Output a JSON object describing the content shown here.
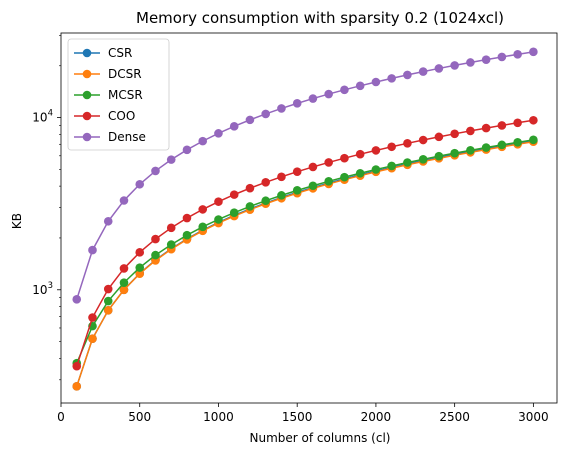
{
  "chart_data": {
    "type": "line",
    "title": "Memory consumption with sparsity 0.2 (1024xcl)",
    "xlabel": "Number of columns (cl)",
    "ylabel": "KB",
    "x_scale": "linear",
    "y_scale": "log",
    "xlim": [
      0,
      3150
    ],
    "ylim": [
      220,
      31000
    ],
    "x_ticks": [
      "0",
      "500",
      "1000",
      "1500",
      "2000",
      "2500",
      "3000"
    ],
    "y_ticks": [
      {
        "value": 1000,
        "base": "10",
        "exp": "3"
      },
      {
        "value": 10000,
        "base": "10",
        "exp": "4"
      }
    ],
    "legend_position": "top-left",
    "marker": "circle",
    "x": [
      100,
      200,
      300,
      400,
      500,
      600,
      700,
      800,
      900,
      1000,
      1100,
      1200,
      1300,
      1400,
      1500,
      1600,
      1700,
      1800,
      1900,
      2000,
      2100,
      2200,
      2300,
      2400,
      2500,
      2600,
      2700,
      2800,
      2900,
      3000
    ],
    "series": [
      {
        "name": "CSR",
        "color": "#1f77b4",
        "values": [
          275,
          520,
          760,
          1000,
          1245,
          1490,
          1730,
          1975,
          2220,
          2460,
          2705,
          2950,
          3190,
          3435,
          3680,
          3920,
          4165,
          4410,
          4650,
          4895,
          5140,
          5385,
          5625,
          5870,
          6115,
          6355,
          6600,
          6845,
          7085,
          7330
        ]
      },
      {
        "name": "DCSR",
        "color": "#ff7f0e",
        "values": [
          275,
          520,
          760,
          1000,
          1240,
          1480,
          1720,
          1960,
          2200,
          2440,
          2680,
          2920,
          3160,
          3400,
          3640,
          3880,
          4120,
          4360,
          4600,
          4840,
          5080,
          5320,
          5560,
          5800,
          6040,
          6280,
          6520,
          6760,
          7000,
          7240
        ]
      },
      {
        "name": "MCSR",
        "color": "#2ca02c",
        "values": [
          375,
          615,
          860,
          1100,
          1345,
          1590,
          1830,
          2075,
          2320,
          2560,
          2805,
          3050,
          3290,
          3535,
          3780,
          4020,
          4265,
          4510,
          4750,
          4995,
          5240,
          5485,
          5725,
          5970,
          6215,
          6455,
          6700,
          6945,
          7185,
          7430
        ]
      },
      {
        "name": "COO",
        "color": "#d62728",
        "values": [
          360,
          690,
          1010,
          1330,
          1650,
          1970,
          2290,
          2610,
          2930,
          3250,
          3570,
          3890,
          4210,
          4530,
          4850,
          5170,
          5490,
          5810,
          6130,
          6450,
          6770,
          7090,
          7410,
          7730,
          8050,
          8370,
          8690,
          9010,
          9330,
          9650
        ]
      },
      {
        "name": "Dense",
        "color": "#9467bd",
        "values": [
          880,
          1700,
          2500,
          3300,
          4100,
          4900,
          5700,
          6500,
          7300,
          8100,
          8900,
          9700,
          10500,
          11300,
          12100,
          12900,
          13700,
          14500,
          15300,
          16100,
          16900,
          17700,
          18500,
          19300,
          20100,
          20900,
          21700,
          22500,
          23300,
          24100
        ]
      }
    ]
  }
}
